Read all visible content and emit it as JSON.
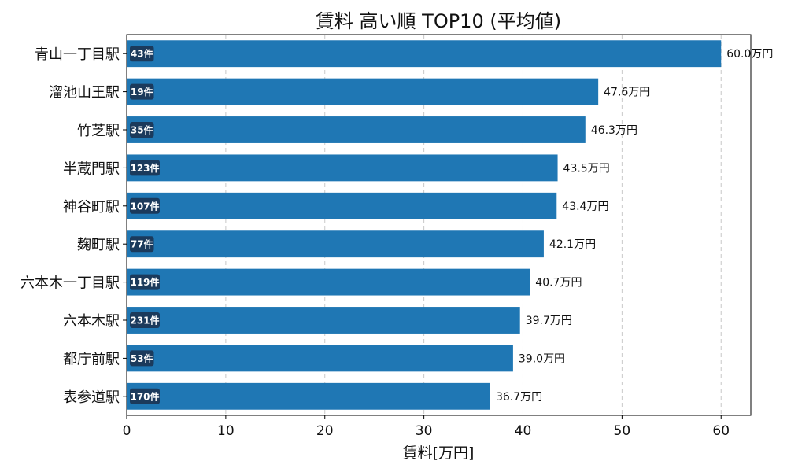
{
  "chart_data": {
    "type": "bar",
    "orientation": "horizontal",
    "title": "賃料 高い順 TOP10 (平均値)",
    "xlabel": "賃料[万円]",
    "ylabel": "",
    "xlim": [
      0,
      63
    ],
    "xticks": [
      0,
      10,
      20,
      30,
      40,
      50,
      60
    ],
    "grid": "x",
    "bar_color": "#1f77b4",
    "badge_color": "#1b3a5c",
    "value_suffix": "万円",
    "categories": [
      "青山一丁目駅",
      "溜池山王駅",
      "竹芝駅",
      "半蔵門駅",
      "神谷町駅",
      "麹町駅",
      "六本木一丁目駅",
      "六本木駅",
      "都庁前駅",
      "表参道駅"
    ],
    "values": [
      60.0,
      47.6,
      46.3,
      43.5,
      43.4,
      42.1,
      40.7,
      39.7,
      39.0,
      36.7
    ],
    "value_labels": [
      "60.0万円",
      "47.6万円",
      "46.3万円",
      "43.5万円",
      "43.4万円",
      "42.1万円",
      "40.7万円",
      "39.7万円",
      "39.0万円",
      "36.7万円"
    ],
    "counts": [
      "43件",
      "19件",
      "35件",
      "123件",
      "107件",
      "77件",
      "119件",
      "231件",
      "53件",
      "170件"
    ]
  }
}
